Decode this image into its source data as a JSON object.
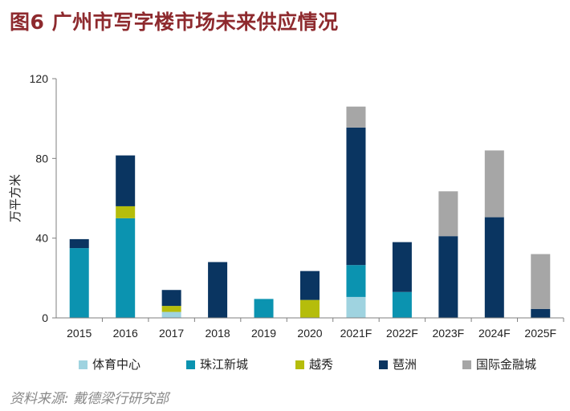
{
  "figure": {
    "title": "图6 广州市写字楼市场未来供应情况",
    "source": "资料来源: 戴德梁行研究部"
  },
  "chart_data": {
    "type": "bar",
    "stacked": true,
    "categories": [
      "2015",
      "2016",
      "2017",
      "2018",
      "2019",
      "2020",
      "2021F",
      "2022F",
      "2023F",
      "2024F",
      "2025F"
    ],
    "ylabel": "万平方米",
    "ylim": [
      0,
      120
    ],
    "yticks": [
      0,
      40,
      80,
      120
    ],
    "legend_position": "bottom",
    "series": [
      {
        "name": "体育中心",
        "color": "#9fd3e0",
        "values": [
          0,
          0,
          3,
          0,
          0,
          0,
          10.5,
          0,
          0,
          0,
          0
        ]
      },
      {
        "name": "珠江新城",
        "color": "#0b93b0",
        "values": [
          35,
          50,
          0,
          0,
          9.5,
          0,
          16,
          13,
          0,
          0,
          0
        ]
      },
      {
        "name": "越秀",
        "color": "#b5bd0b",
        "values": [
          0,
          6,
          3,
          0,
          0,
          9,
          0,
          0,
          0,
          0,
          0
        ]
      },
      {
        "name": "琶洲",
        "color": "#0a3561",
        "values": [
          4.5,
          25.5,
          8,
          28,
          0,
          14.5,
          69,
          25,
          41,
          50.5,
          4.5
        ]
      },
      {
        "name": "国际金融城",
        "color": "#a6a6a6",
        "values": [
          0,
          0,
          0,
          0,
          0,
          0,
          10.5,
          0,
          22.5,
          33.5,
          27.5
        ]
      }
    ]
  }
}
